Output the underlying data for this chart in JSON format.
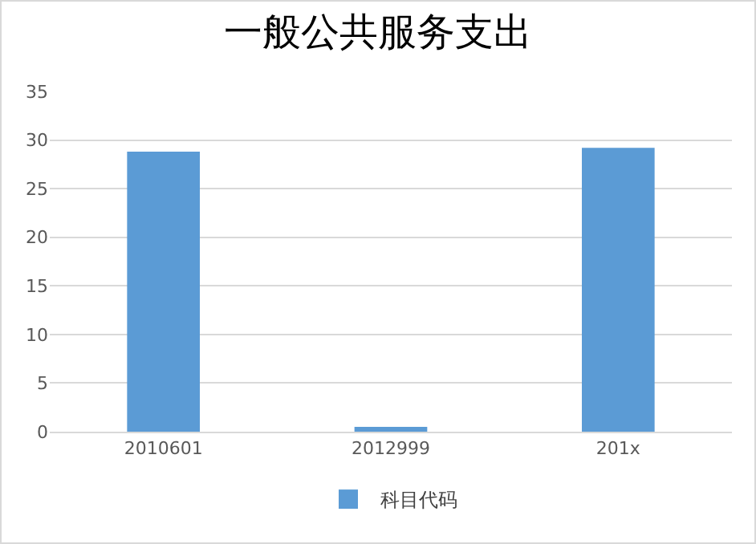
{
  "chart_data": {
    "type": "bar",
    "title": "一般公共服务支出",
    "categories": [
      "2010601",
      "2012999",
      "201x"
    ],
    "series": [
      {
        "name": "科目代码",
        "color": "#5b9bd5",
        "values": [
          28.8,
          0.5,
          29.2
        ]
      }
    ],
    "ylim": [
      0,
      35
    ],
    "yticks": [
      0,
      5,
      10,
      15,
      20,
      25,
      30,
      35
    ],
    "grid": "y",
    "legend": "bottom"
  }
}
